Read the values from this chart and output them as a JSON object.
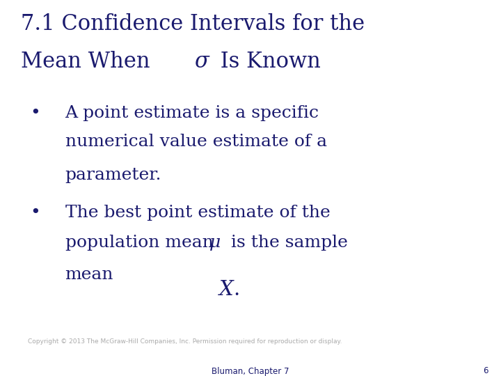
{
  "background_color": "#ffffff",
  "title_line1": "7.1 Confidence Intervals for the",
  "title_line2_pre": "Mean When ",
  "title_line2_sigma": "σ",
  "title_line2_post": " Is Known",
  "title_color": "#1a1a6e",
  "title_fontsize": 22,
  "bullet_color": "#1a1a6e",
  "bullet_fontsize": 18,
  "bullet1_line1": "A point estimate is a specific",
  "bullet1_line2": "numerical value estimate of a",
  "bullet1_line3": "parameter.",
  "bullet2_line1": "The best point estimate of the",
  "bullet2_line2_pre": "population mean ",
  "bullet2_line2_mu": "μ",
  "bullet2_line2_post": " is the sample",
  "bullet2_line3": "mean",
  "copyright_text": "Copyright © 2013 The McGraw-Hill Companies, Inc. Permission required for reproduction or display.",
  "copyright_color": "#aaaaaa",
  "copyright_fontsize": 6.5,
  "footer_text": "Bluman, Chapter 7",
  "footer_color": "#1a1a6e",
  "footer_fontsize": 8.5,
  "page_num": "6",
  "page_num_color": "#1a1a6e",
  "page_num_fontsize": 8.5,
  "dot_color": "#1a1a6e"
}
